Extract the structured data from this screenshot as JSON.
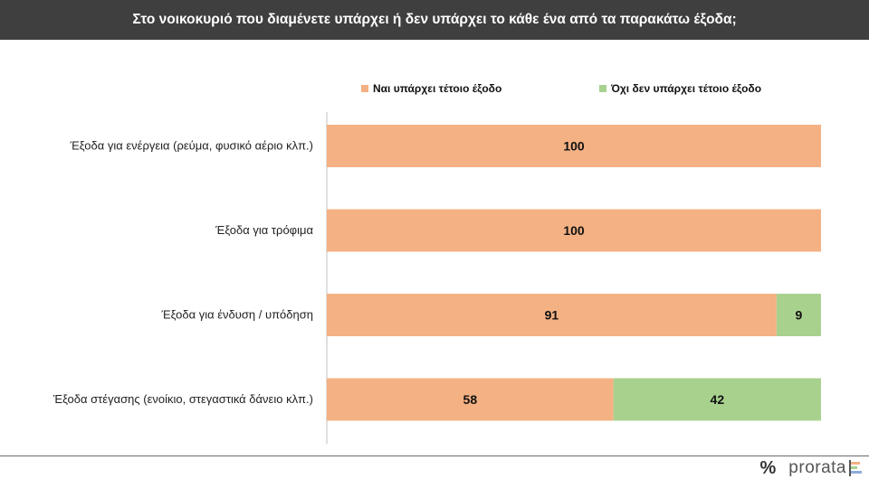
{
  "header": {
    "title": "Στο νοικοκυριό που διαμένετε υπάρχει ή δεν υπάρχει το κάθε ένα από τα παρακάτω έξοδα;"
  },
  "colors": {
    "yes": "#f4b183",
    "no": "#a9d18e",
    "header_bg": "#3f3f3f"
  },
  "chart_data": {
    "type": "bar",
    "orientation": "horizontal",
    "stacked": true,
    "title": "Στο νοικοκυριό που διαμένετε υπάρχει ή δεν υπάρχει το κάθε ένα από τα παρακάτω έξοδα;",
    "categories": [
      "Έξοδα για ενέργεια (ρεύμα, φυσικό αέριο κλπ.)",
      "Έξοδα για τρόφιμα",
      "Έξοδα για ένδυση / υπόδηση",
      "Έξοδα στέγασης (ενοίκιο, στεγαστικά δάνειο κλπ.)"
    ],
    "series": [
      {
        "name": "Ναι υπάρχει τέτοιο έξοδο",
        "color": "#f4b183",
        "values": [
          100,
          100,
          91,
          58
        ]
      },
      {
        "name": "Όχι δεν υπάρχει τέτοιο έξοδο",
        "color": "#a9d18e",
        "values": [
          0,
          0,
          9,
          42
        ]
      }
    ],
    "xlim": [
      0,
      100
    ],
    "legend": "top",
    "grid": false
  },
  "logo": {
    "symbol": "%",
    "text": "prorata"
  }
}
